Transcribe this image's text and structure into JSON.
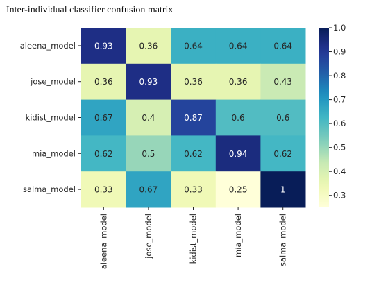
{
  "chart_data": {
    "type": "heatmap",
    "title": "Inter-individual classifier confusion matrix",
    "rows": [
      "aleena_model",
      "jose_model",
      "kidist_model",
      "mia_model",
      "salma_model"
    ],
    "columns": [
      "aleena_model",
      "jose_model",
      "kidist_model",
      "mia_model",
      "salma_model"
    ],
    "values": [
      [
        "0.93",
        "0.36",
        "0.64",
        "0.64",
        "0.64"
      ],
      [
        "0.36",
        "0.93",
        "0.36",
        "0.36",
        "0.43"
      ],
      [
        "0.67",
        "0.4",
        "0.87",
        "0.6",
        "0.6"
      ],
      [
        "0.62",
        "0.5",
        "0.62",
        "0.94",
        "0.62"
      ],
      [
        "0.33",
        "0.67",
        "0.33",
        "0.25",
        "1"
      ]
    ],
    "colormap": "YlGnBu",
    "vmin": 0.25,
    "vmax": 1.0,
    "colorbar_ticks": [
      "1.0",
      "0.9",
      "0.8",
      "0.7",
      "0.6",
      "0.5",
      "0.4",
      "0.3"
    ],
    "grid": false,
    "colorbar_position": "right"
  }
}
